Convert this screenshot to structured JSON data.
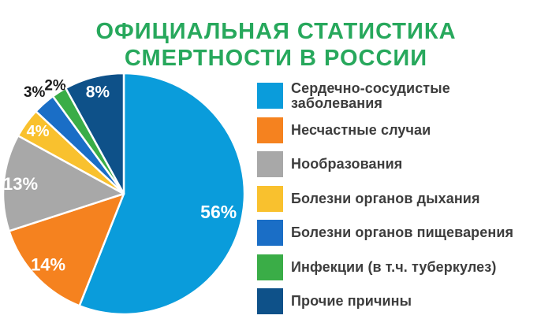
{
  "title": "ОФИЦИАЛЬНАЯ СТАТИСТИКА СМЕРТНОСТИ В РОССИИ",
  "title_color": "#27a85c",
  "legend_text_color": "#3d3d3d",
  "chart_data": {
    "type": "pie",
    "title": "ОФИЦИАЛЬНАЯ СТАТИСТИКА СМЕРТНОСТИ В РОССИИ",
    "value_suffix": "%",
    "legend_position": "right",
    "start_angle_deg": 0,
    "direction": "clockwise",
    "slices": [
      {
        "label": "Сердечно-сосудистые заболевания",
        "value": 56,
        "color": "#0a9cdb",
        "label_color": "#ffffff",
        "label_inside": true
      },
      {
        "label": "Несчастные случаи",
        "value": 14,
        "color": "#f5821f",
        "label_color": "#ffffff",
        "label_inside": true
      },
      {
        "label": "Нообразования",
        "value": 13,
        "color": "#a8a8a8",
        "label_color": "#ffffff",
        "label_inside": true
      },
      {
        "label": "Болезни органов дыхания",
        "value": 4,
        "color": "#f9c12e",
        "label_color": "#ffffff",
        "label_inside": true
      },
      {
        "label": "Болезни органов пищеварения",
        "value": 3,
        "color": "#1a6ec6",
        "label_color": "#1c1c1c",
        "label_inside": false
      },
      {
        "label": "Инфекции (в т.ч. туберкулез)",
        "value": 2,
        "color": "#3aad47",
        "label_color": "#1c1c1c",
        "label_inside": false
      },
      {
        "label": "Прочие причины",
        "value": 8,
        "color": "#0e5189",
        "label_color": "#ffffff",
        "label_inside": true
      }
    ]
  }
}
